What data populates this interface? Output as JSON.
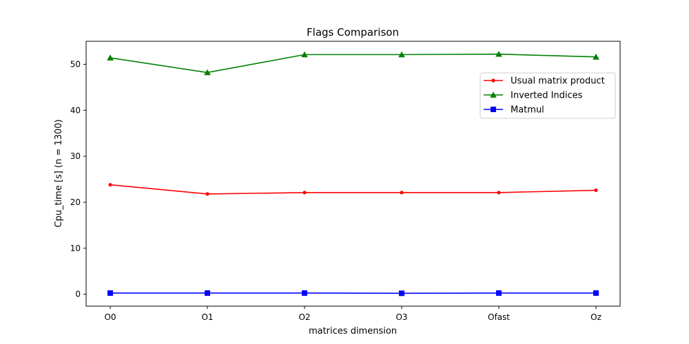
{
  "chart_data": {
    "type": "line",
    "title": "Flags Comparison",
    "xlabel": "matrices dimension",
    "ylabel": "Cpu_time [s] (n = 1300)",
    "categories": [
      "O0",
      "O1",
      "O2",
      "O3",
      "Ofast",
      "Oz"
    ],
    "ylim": [
      -2.6,
      55
    ],
    "yticks": [
      0,
      10,
      20,
      30,
      40,
      50
    ],
    "grid": false,
    "legend_position": "upper right",
    "series": [
      {
        "name": "Usual matrix product",
        "color": "#ff0000",
        "marker": "circle",
        "values": [
          23.8,
          21.8,
          22.1,
          22.1,
          22.1,
          22.6
        ]
      },
      {
        "name": "Inverted Indices",
        "color": "#008000",
        "marker": "triangle",
        "values": [
          51.4,
          48.2,
          52.1,
          52.1,
          52.2,
          51.6
        ]
      },
      {
        "name": "Matmul",
        "color": "#0000ff",
        "marker": "square",
        "values": [
          0.25,
          0.25,
          0.25,
          0.2,
          0.25,
          0.25
        ]
      }
    ]
  }
}
